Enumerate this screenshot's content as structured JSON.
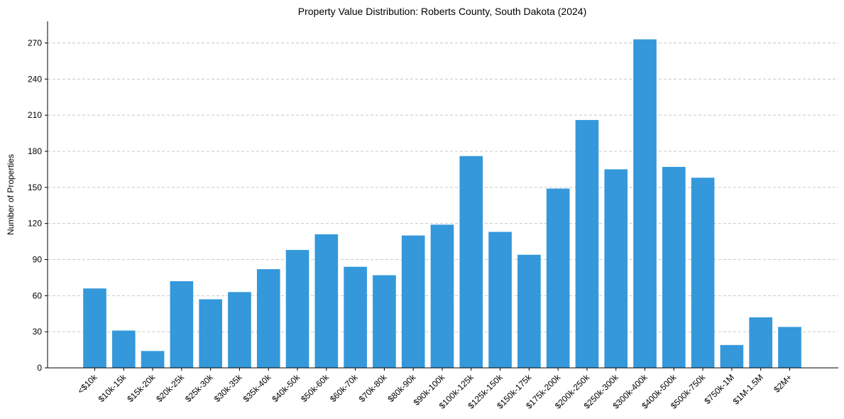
{
  "chart_data": {
    "type": "bar",
    "title": "Property Value Distribution: Roberts County, South Dakota (2024)",
    "xlabel": "",
    "ylabel": "Number of Properties",
    "ylim": [
      0,
      288
    ],
    "yticks": [
      0,
      30,
      60,
      90,
      120,
      150,
      180,
      210,
      240,
      270
    ],
    "grid": "y-dashed",
    "color": "#3498db",
    "categories": [
      "<$10k",
      "$10k-15k",
      "$15k-20k",
      "$20k-25k",
      "$25k-30k",
      "$30k-35k",
      "$35k-40k",
      "$40k-50k",
      "$50k-60k",
      "$60k-70k",
      "$70k-80k",
      "$80k-90k",
      "$90k-100k",
      "$100k-125k",
      "$125k-150k",
      "$150k-175k",
      "$175k-200k",
      "$200k-250k",
      "$250k-300k",
      "$300k-400k",
      "$400k-500k",
      "$500k-750k",
      "$750k-1M",
      "$1M-1.5M",
      "$2M+"
    ],
    "values": [
      66,
      31,
      14,
      72,
      57,
      63,
      82,
      98,
      111,
      84,
      77,
      110,
      119,
      176,
      113,
      94,
      149,
      206,
      165,
      273,
      167,
      158,
      19,
      42,
      34
    ]
  }
}
